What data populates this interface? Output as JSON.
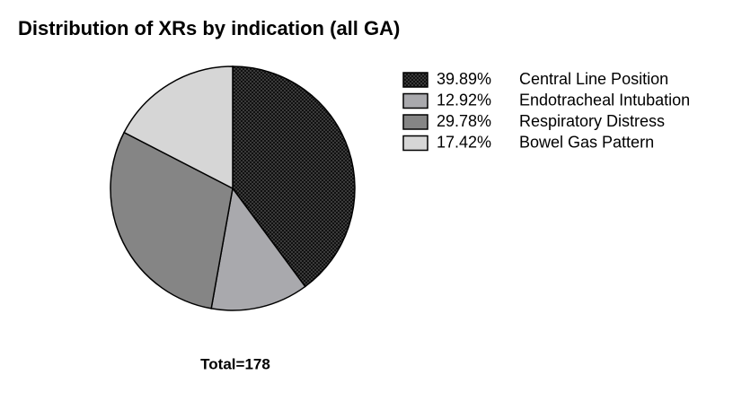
{
  "chart_data": {
    "type": "pie",
    "title": "Distribution of XRs by indication (all GA)",
    "categories": [
      "Central Line Position",
      "Endotracheal Intubation",
      "Respiratory Distress",
      "Bowel Gas Pattern"
    ],
    "values": [
      39.89,
      12.92,
      29.78,
      17.42
    ],
    "value_labels": [
      "39.89%",
      "12.92%",
      "29.78%",
      "17.42%"
    ],
    "colors": [
      "#1e1e1e",
      "#a9a9ad",
      "#858585",
      "#d6d6d6"
    ],
    "annotation": "Total=178"
  }
}
